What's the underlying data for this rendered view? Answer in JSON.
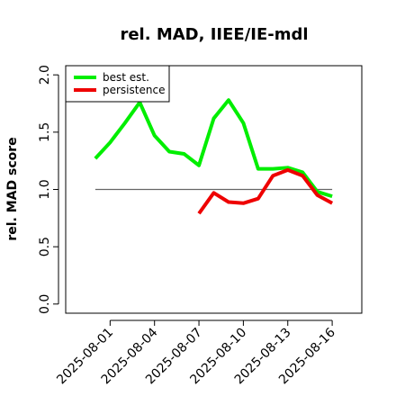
{
  "chart_data": {
    "type": "line",
    "title": "rel. MAD, IIEE/IE-mdl",
    "y_label": "rel. MAD score",
    "x": [
      "2025-07-31",
      "2025-08-01",
      "2025-08-02",
      "2025-08-03",
      "2025-08-04",
      "2025-08-05",
      "2025-08-06",
      "2025-08-07",
      "2025-08-08",
      "2025-08-09",
      "2025-08-10",
      "2025-08-11",
      "2025-08-12",
      "2025-08-13",
      "2025-08-14",
      "2025-08-15",
      "2025-08-16"
    ],
    "series": [
      {
        "name": "best est.",
        "color": "#00ee00",
        "values": [
          1.27,
          1.41,
          1.58,
          1.76,
          1.47,
          1.33,
          1.31,
          1.21,
          1.62,
          1.78,
          1.58,
          1.18,
          1.18,
          1.19,
          1.15,
          0.98,
          0.94
        ]
      },
      {
        "name": "persistence",
        "color": "#ee0000",
        "values": [
          null,
          null,
          null,
          null,
          null,
          null,
          null,
          0.79,
          0.97,
          0.89,
          0.88,
          0.92,
          1.12,
          1.17,
          1.12,
          0.95,
          0.88
        ]
      }
    ],
    "reference": 1,
    "reference_color": "#666666",
    "xlim": [
      "2025-07-29",
      "2025-08-18"
    ],
    "xticks": [
      "2025-08-01",
      "2025-08-04",
      "2025-08-07",
      "2025-08-10",
      "2025-08-13",
      "2025-08-16"
    ],
    "ylim": [
      -0.08,
      2.08
    ],
    "yticks": [
      {
        "value": 0,
        "label": "0.0"
      },
      {
        "value": 0.5,
        "label": "0.5"
      },
      {
        "value": 1,
        "label": "1.0"
      },
      {
        "value": 1.5,
        "label": "1.5"
      },
      {
        "value": 2,
        "label": "2.0"
      }
    ],
    "legend": "top-left"
  }
}
